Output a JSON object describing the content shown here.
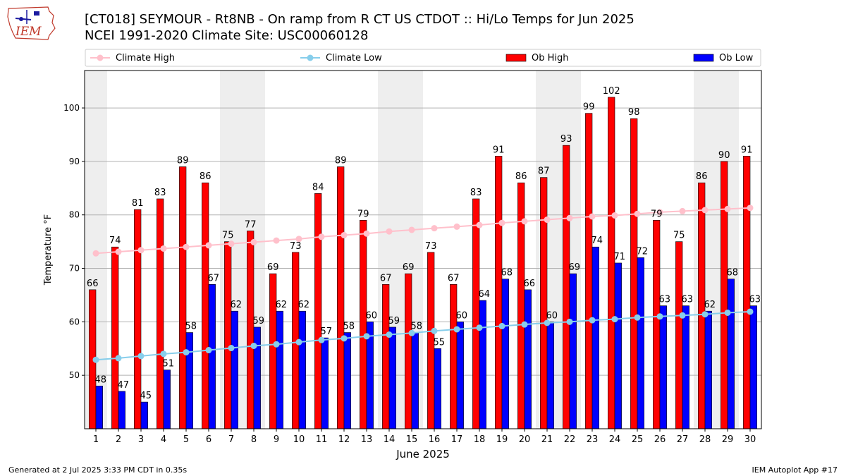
{
  "title": {
    "line1": "[CT018] SEYMOUR - Rt8NB - On ramp from R CT US CTDOT :: Hi/Lo Temps for Jun 2025",
    "line2": "NCEI 1991-2020 Climate Site: USC00060128"
  },
  "logo": {
    "text": "IEM",
    "icon": "iowa-state-outline-logo"
  },
  "footer": {
    "left": "Generated at 2 Jul 2025 3:33 PM CDT in 0.35s",
    "right": "IEM Autoplot App #17"
  },
  "colors": {
    "ob_high": "#ff0000",
    "ob_low": "#0000ff",
    "climate_high": "#ffc0cb",
    "climate_low": "#87ceeb",
    "weekend_band": "#eeeeee",
    "grid": "#b0b0b0"
  },
  "chart_data": {
    "type": "bar",
    "xlabel": "June 2025",
    "ylabel": "Temperature °F",
    "ylim": [
      40,
      107
    ],
    "yticks": [
      50,
      60,
      70,
      80,
      90,
      100
    ],
    "grid": "horizontal",
    "legend_position": "top",
    "categories": [
      "1",
      "2",
      "3",
      "4",
      "5",
      "6",
      "7",
      "8",
      "9",
      "10",
      "11",
      "12",
      "13",
      "14",
      "15",
      "16",
      "17",
      "18",
      "19",
      "20",
      "21",
      "22",
      "23",
      "24",
      "25",
      "26",
      "27",
      "28",
      "29",
      "30"
    ],
    "shaded_days": [
      1,
      7,
      8,
      14,
      15,
      21,
      22,
      28,
      29
    ],
    "series": [
      {
        "name": "Climate High",
        "kind": "line",
        "values": [
          72.8,
          73.1,
          73.4,
          73.7,
          74.0,
          74.3,
          74.6,
          74.9,
          75.2,
          75.5,
          75.9,
          76.2,
          76.5,
          76.9,
          77.2,
          77.5,
          77.8,
          78.1,
          78.5,
          78.8,
          79.1,
          79.4,
          79.7,
          79.9,
          80.2,
          80.5,
          80.7,
          80.9,
          81.1,
          81.3
        ]
      },
      {
        "name": "Climate Low",
        "kind": "line",
        "values": [
          52.9,
          53.2,
          53.6,
          54.0,
          54.3,
          54.7,
          55.1,
          55.5,
          55.8,
          56.2,
          56.6,
          56.9,
          57.3,
          57.6,
          57.9,
          58.3,
          58.6,
          58.9,
          59.2,
          59.5,
          59.8,
          60.0,
          60.3,
          60.5,
          60.8,
          61.0,
          61.2,
          61.4,
          61.7,
          61.9
        ]
      },
      {
        "name": "Ob High",
        "kind": "bar",
        "values": [
          66,
          74,
          81,
          83,
          89,
          86,
          75,
          77,
          69,
          73,
          84,
          89,
          79,
          67,
          69,
          73,
          67,
          83,
          91,
          86,
          87,
          93,
          99,
          102,
          98,
          79,
          75,
          86,
          90,
          91
        ]
      },
      {
        "name": "Ob Low",
        "kind": "bar",
        "values": [
          48,
          47,
          45,
          51,
          58,
          67,
          62,
          59,
          62,
          62,
          57,
          58,
          60,
          59,
          58,
          55,
          60,
          64,
          68,
          66,
          60,
          69,
          74,
          71,
          72,
          63,
          63,
          62,
          68,
          63
        ]
      }
    ]
  }
}
